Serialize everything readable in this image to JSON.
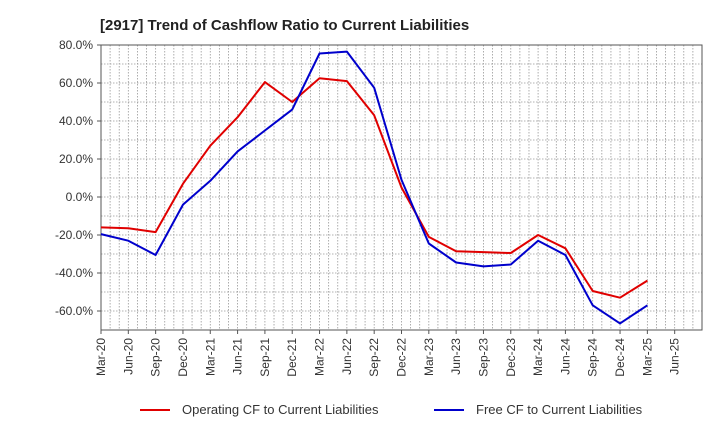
{
  "chart_data": {
    "type": "line",
    "title": "[2917]  Trend of Cashflow Ratio to Current Liabilities",
    "xlabel": "",
    "ylabel": "",
    "ylim": [
      -70,
      80
    ],
    "yticks": [
      "80.0%",
      "60.0%",
      "40.0%",
      "20.0%",
      "0.0%",
      "-20.0%",
      "-40.0%",
      "-60.0%"
    ],
    "ytick_values": [
      80,
      60,
      40,
      20,
      0,
      -20,
      -40,
      -60
    ],
    "xticks": [
      "Mar-20",
      "Jun-20",
      "Sep-20",
      "Dec-20",
      "Mar-21",
      "Jun-21",
      "Sep-21",
      "Dec-21",
      "Mar-22",
      "Jun-22",
      "Sep-22",
      "Dec-22",
      "Mar-23",
      "Jun-23",
      "Sep-23",
      "Dec-23",
      "Mar-24",
      "Jun-24",
      "Sep-24",
      "Dec-24",
      "Mar-25",
      "Jun-25"
    ],
    "grid": true,
    "legend_position": "bottom",
    "x": [
      "Mar-20",
      "Jun-20",
      "Sep-20",
      "Dec-20",
      "Mar-21",
      "Jun-21",
      "Sep-21",
      "Dec-21",
      "Mar-22",
      "Jun-22",
      "Sep-22",
      "Dec-22",
      "Mar-23",
      "Jun-23",
      "Sep-23",
      "Dec-23",
      "Mar-24",
      "Jun-24",
      "Sep-24",
      "Dec-24",
      "Mar-25"
    ],
    "series": [
      {
        "name": "Operating CF to Current Liabilities",
        "color": "#e00000",
        "values": [
          -16.0,
          -16.5,
          -18.5,
          7.0,
          27.0,
          42.0,
          60.5,
          50.0,
          62.5,
          61.0,
          43.0,
          5.0,
          -21.0,
          -28.5,
          -29.0,
          -29.5,
          -20.0,
          -27.0,
          -49.5,
          -53.0,
          -44.0
        ]
      },
      {
        "name": "Free CF to Current Liabilities",
        "color": "#0000cc",
        "values": [
          -19.5,
          -23.0,
          -30.5,
          -4.0,
          8.5,
          24.0,
          35.0,
          46.0,
          75.5,
          76.5,
          57.5,
          9.0,
          -24.5,
          -34.5,
          -36.5,
          -35.5,
          -23.0,
          -30.5,
          -57.0,
          -66.5,
          -57.0
        ]
      }
    ]
  }
}
